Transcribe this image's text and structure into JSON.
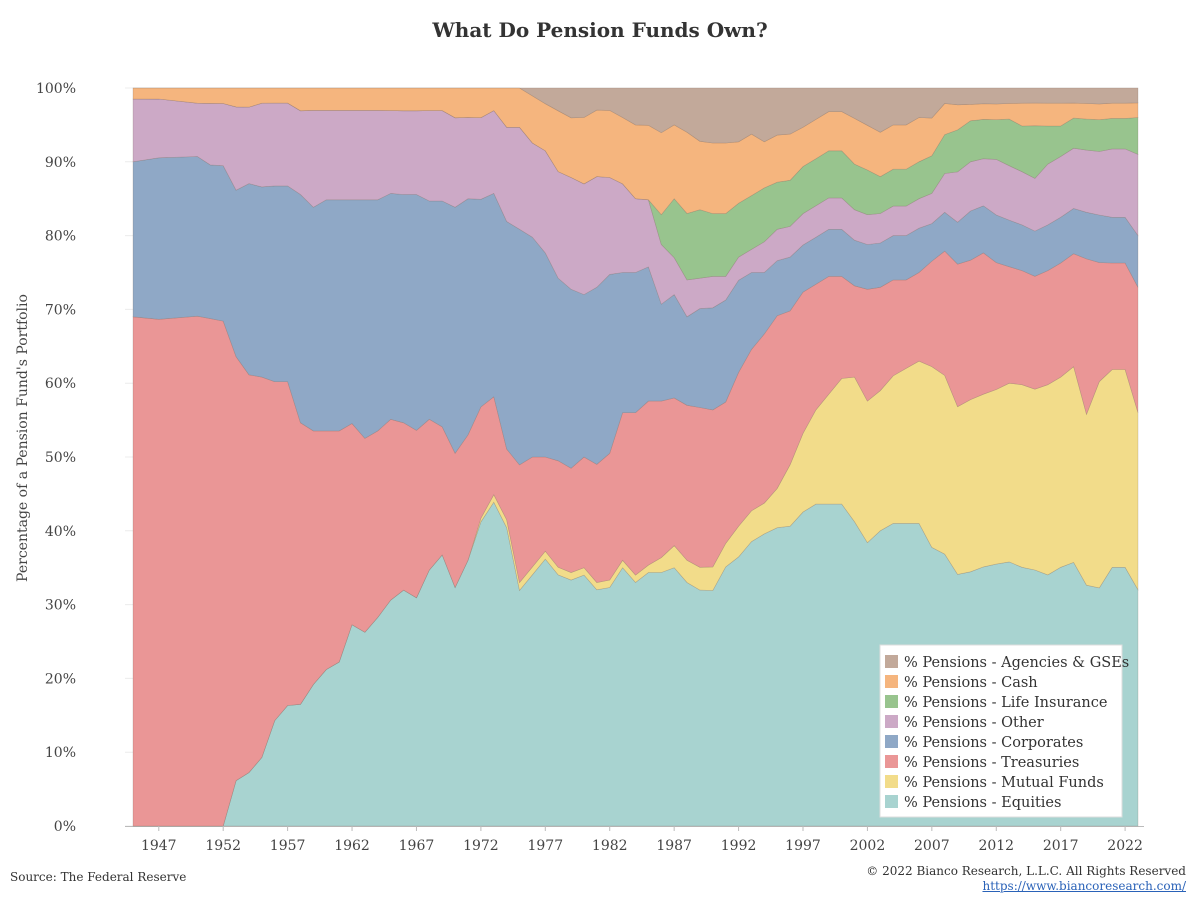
{
  "chart_data": {
    "type": "area",
    "stacked": true,
    "title": "What Do Pension Funds Own?",
    "ylabel": "Percentage of a Pension Fund's Portfolio",
    "xlabel": "",
    "xlim": [
      1945,
      2023
    ],
    "ylim": [
      0,
      100
    ],
    "y_ticks": [
      "0%",
      "10%",
      "20%",
      "30%",
      "40%",
      "50%",
      "60%",
      "70%",
      "80%",
      "90%",
      "100%"
    ],
    "x_ticks": [
      "1947",
      "1952",
      "1957",
      "1962",
      "1967",
      "1972",
      "1977",
      "1982",
      "1987",
      "1992",
      "1997",
      "2002",
      "2007",
      "2012",
      "2017",
      "2022"
    ],
    "grid": "horizontal",
    "legend_position": "bottom-right",
    "x": [
      1945,
      1947,
      1950,
      1951,
      1952,
      1953,
      1954,
      1955,
      1956,
      1957,
      1958,
      1959,
      1960,
      1961,
      1962,
      1963,
      1964,
      1965,
      1966,
      1967,
      1968,
      1969,
      1970,
      1971,
      1972,
      1973,
      1974,
      1975,
      1976,
      1977,
      1978,
      1979,
      1980,
      1981,
      1982,
      1983,
      1984,
      1985,
      1986,
      1987,
      1988,
      1989,
      1990,
      1991,
      1992,
      1993,
      1994,
      1995,
      1996,
      1997,
      1998,
      1999,
      2000,
      2001,
      2002,
      2003,
      2004,
      2005,
      2006,
      2007,
      2008,
      2009,
      2010,
      2011,
      2012,
      2013,
      2014,
      2015,
      2016,
      2017,
      2018,
      2019,
      2020,
      2021,
      2022,
      2023
    ],
    "series": [
      {
        "name": "% Pensions - Equities",
        "color": "#a8d3d0",
        "values": [
          0,
          0,
          0,
          0,
          0,
          6,
          7,
          9,
          14,
          16,
          16,
          19,
          21,
          22,
          27,
          26,
          28,
          30,
          31,
          30,
          34,
          36,
          32,
          36,
          41,
          43,
          38,
          30,
          32,
          34,
          33,
          33,
          34,
          32,
          32,
          35,
          33,
          34,
          34,
          35,
          33,
          31,
          30,
          33,
          35,
          37,
          38,
          38,
          39,
          40,
          41,
          41,
          41,
          40,
          38,
          40,
          41,
          41,
          41,
          37,
          35,
          30,
          31,
          33,
          33,
          34,
          34,
          34,
          33,
          34,
          35,
          31,
          30,
          34,
          34,
          32
        ]
      },
      {
        "name": "% Pensions - Mutual Funds",
        "color": "#f2dc8a",
        "values": [
          0,
          0,
          0,
          0,
          0,
          0,
          0,
          0,
          0,
          0,
          0,
          0,
          0,
          0,
          0,
          0,
          0,
          0,
          0,
          0,
          0,
          0,
          0,
          0,
          0.5,
          1,
          1,
          1,
          1,
          1,
          1,
          1,
          1,
          1,
          1,
          1,
          1,
          1,
          2,
          3,
          3,
          3,
          3,
          3,
          4,
          4,
          4,
          5,
          8,
          10,
          12,
          14,
          16,
          19,
          19,
          19,
          20,
          21,
          22,
          24,
          23,
          20,
          21,
          22,
          22,
          23,
          24,
          24,
          25,
          25,
          26,
          22,
          26,
          26,
          26,
          24
        ]
      },
      {
        "name": "% Pensions - Treasuries",
        "color": "#ea9696",
        "values": [
          69,
          69,
          67,
          66,
          65,
          56,
          52,
          50,
          45,
          43,
          37,
          34,
          32,
          31,
          27,
          26,
          25,
          24,
          22,
          22,
          20,
          17,
          18,
          17,
          15,
          13,
          9,
          15,
          14,
          12,
          14,
          14,
          15,
          16,
          17,
          20,
          22,
          22,
          21,
          20,
          21,
          21,
          20,
          18,
          20,
          21,
          22,
          22,
          20,
          18,
          16,
          15,
          13,
          12,
          15,
          14,
          13,
          12,
          12,
          14,
          16,
          17,
          17,
          18,
          16,
          15,
          15,
          15,
          15,
          15,
          15,
          20,
          15,
          14,
          14,
          17
        ]
      },
      {
        "name": "% Pensions - Corporates",
        "color": "#8fa8c6",
        "values": [
          21,
          22,
          21,
          20,
          20,
          22,
          25,
          25,
          26,
          26,
          30,
          30,
          31,
          31,
          30,
          32,
          31,
          30,
          30,
          31,
          29,
          30,
          33,
          32,
          28,
          27,
          29,
          30,
          28,
          26,
          24,
          24,
          22,
          24,
          24,
          19,
          19,
          18,
          13,
          14,
          12,
          13,
          13,
          13,
          12,
          10,
          8,
          7,
          7,
          6,
          6,
          6,
          6,
          6,
          6,
          6,
          6,
          6,
          6,
          5,
          5,
          5,
          6,
          6,
          6,
          6,
          6,
          6,
          6,
          6,
          6,
          6,
          6,
          6,
          6,
          7
        ]
      },
      {
        "name": "% Pensions - Other",
        "color": "#cca9c6",
        "values": [
          8.5,
          8,
          7,
          8,
          8,
          11,
          10,
          11,
          11,
          11,
          11,
          13,
          12,
          12,
          12,
          12,
          12,
          11,
          11,
          11,
          12,
          12,
          12,
          11,
          11,
          11,
          12,
          13,
          12,
          13,
          14,
          15,
          15,
          15,
          13,
          12,
          10,
          9,
          8,
          5,
          5,
          4,
          4,
          3,
          3,
          3,
          4,
          4,
          4,
          4,
          4,
          4,
          4,
          4,
          4,
          4,
          4,
          4,
          4,
          4,
          5,
          6,
          6,
          6,
          7,
          7,
          7,
          7,
          8,
          8,
          8,
          8,
          8,
          9,
          9,
          11
        ]
      },
      {
        "name": "% Pensions - Life Insurance",
        "color": "#98c48e",
        "values": [
          0,
          0,
          0,
          0,
          0,
          0,
          0,
          0,
          0,
          0,
          0,
          0,
          0,
          0,
          0,
          0,
          0,
          0,
          0,
          0,
          0,
          0,
          0,
          0,
          0,
          0,
          0,
          0,
          0,
          0,
          0,
          0,
          0,
          0,
          0,
          0,
          0,
          0,
          4,
          8,
          9,
          9,
          8,
          8,
          7,
          7,
          7,
          6,
          6,
          6,
          6,
          6,
          6,
          6,
          6,
          5,
          5,
          5,
          5,
          5,
          5,
          5,
          5,
          5,
          5,
          6,
          6,
          7,
          5,
          4,
          4,
          4,
          4,
          4,
          4,
          5
        ]
      },
      {
        "name": "% Pensions - Cash",
        "color": "#f5b57e",
        "values": [
          1.5,
          1.5,
          2,
          2,
          2,
          2.5,
          2.5,
          2,
          2,
          2,
          3,
          3,
          3,
          3,
          3,
          3,
          3,
          3,
          3,
          3,
          3,
          3,
          4,
          4,
          4,
          3,
          5,
          5,
          6,
          6,
          8,
          8,
          9,
          9,
          9,
          9,
          10,
          10,
          11,
          10,
          11,
          9,
          9,
          9,
          8,
          8,
          6,
          6,
          6,
          5,
          5,
          5,
          5,
          6,
          6,
          6,
          6,
          6,
          6,
          5,
          4,
          3,
          2,
          2,
          2,
          2,
          3,
          3,
          3,
          3,
          2,
          2,
          2,
          2,
          2,
          2
        ]
      },
      {
        "name": "% Pensions - Agencies & GSEs",
        "color": "#c2a99a",
        "values": [
          0,
          0,
          0,
          0,
          0,
          0,
          0,
          0,
          0,
          0,
          0,
          0,
          0,
          0,
          0,
          0,
          0,
          0,
          0,
          0,
          0,
          0,
          0,
          0,
          0,
          0,
          0,
          0,
          1,
          2,
          3,
          4,
          4,
          3,
          3,
          4,
          5,
          5,
          6,
          5,
          6,
          7,
          7,
          7,
          7,
          6,
          7,
          6,
          6,
          5,
          4,
          3,
          3,
          4,
          5,
          6,
          5,
          5,
          4,
          4,
          2,
          2,
          2,
          2,
          2,
          2,
          2,
          2,
          2,
          2,
          2,
          2,
          2,
          2,
          2,
          2
        ]
      }
    ],
    "legend_order": [
      "% Pensions - Agencies & GSEs",
      "% Pensions - Cash",
      "% Pensions - Life Insurance",
      "% Pensions - Other",
      "% Pensions - Corporates",
      "% Pensions - Treasuries",
      "% Pensions - Mutual Funds",
      "% Pensions - Equities"
    ]
  },
  "footer": {
    "source": "Source: The Federal Reserve",
    "copyright": "© 2022 Bianco Research, L.L.C. All Rights Reserved",
    "url": "https://www.biancoresearch.com/"
  },
  "colors": {
    "gridline": "#ececec",
    "axis": "#bbbbbb",
    "link": "#2a62b8"
  }
}
